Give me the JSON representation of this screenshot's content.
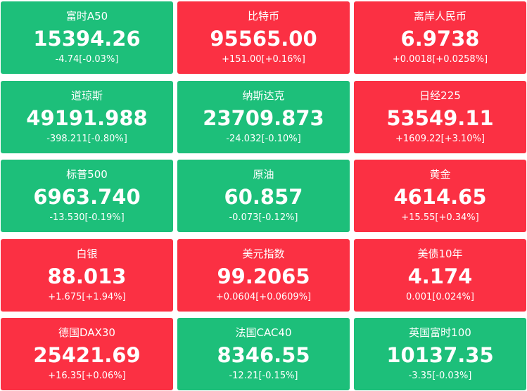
{
  "tiles": [
    {
      "name": "富时A50",
      "price": "15394.26",
      "change": "-4.74[-0.03%]",
      "color": "#1dbf7a"
    },
    {
      "name": "比特币",
      "price": "95565.00",
      "change": "+151.00[+0.16%]",
      "color": "#fb3043"
    },
    {
      "name": "离岸人民币",
      "price": "6.9738",
      "change": "+0.0018[+0.0258%]",
      "color": "#fb3043"
    },
    {
      "name": "道琼斯",
      "price": "49191.988",
      "change": "-398.211[-0.80%]",
      "color": "#1dbf7a"
    },
    {
      "name": "纳斯达克",
      "price": "23709.873",
      "change": "-24.032[-0.10%]",
      "color": "#1dbf7a"
    },
    {
      "name": "日经225",
      "price": "53549.11",
      "change": "+1609.22[+3.10%]",
      "color": "#fb3043"
    },
    {
      "name": "标普500",
      "price": "6963.740",
      "change": "-13.530[-0.19%]",
      "color": "#1dbf7a"
    },
    {
      "name": "原油",
      "price": "60.857",
      "change": "-0.073[-0.12%]",
      "color": "#1dbf7a"
    },
    {
      "name": "黄金",
      "price": "4614.65",
      "change": "+15.55[+0.34%]",
      "color": "#fb3043"
    },
    {
      "name": "白银",
      "price": "88.013",
      "change": "+1.675[+1.94%]",
      "color": "#fb3043"
    },
    {
      "name": "美元指数",
      "price": "99.2065",
      "change": "+0.0604[+0.0609%]",
      "color": "#fb3043"
    },
    {
      "name": "美债10年",
      "price": "4.174",
      "change": "0.001[0.024%]",
      "color": "#fb3043"
    },
    {
      "name": "德国DAX30",
      "price": "25421.69",
      "change": "+16.35[+0.06%]",
      "color": "#fb3043"
    },
    {
      "name": "法国CAC40",
      "price": "8346.55",
      "change": "-12.21[-0.15%]",
      "color": "#1dbf7a"
    },
    {
      "name": "英国富时100",
      "price": "10137.35",
      "change": "-3.35[-0.03%]",
      "color": "#1dbf7a"
    }
  ]
}
